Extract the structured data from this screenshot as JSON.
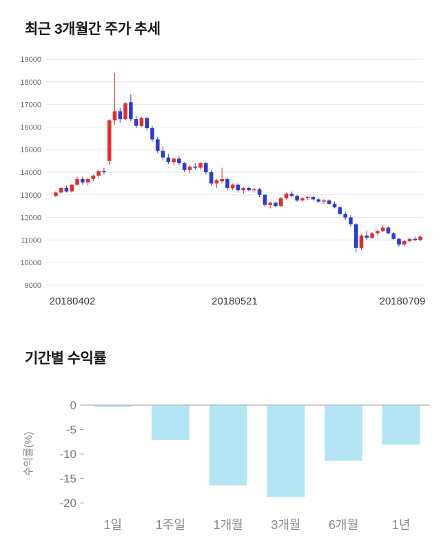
{
  "price_section": {
    "title": "최근 3개월간 주가 추세"
  },
  "returns_section": {
    "title": "기간별 수익률"
  },
  "colors": {
    "candle_up": "#e02f2f",
    "candle_down": "#2b3bd4",
    "gridline": "#e6e6e6",
    "axis_line": "#b0b0b0",
    "tick_label": "#666666",
    "x_label": "#3c3c3c",
    "bar_fill": "#b3e5f4",
    "bar_axis_text": "#777777",
    "category_text": "#888888"
  },
  "chart_data": [
    {
      "type": "candlestick",
      "title": "최근 3개월간 주가 추세",
      "ylim": [
        9000,
        19000
      ],
      "ytick_interval": 1000,
      "x_labels": [
        "20180402",
        "20180521",
        "20180709"
      ],
      "candles": [
        [
          12950,
          13150,
          12900,
          13100
        ],
        [
          13100,
          13350,
          13050,
          13300
        ],
        [
          13300,
          13400,
          13100,
          13150
        ],
        [
          13150,
          13500,
          13100,
          13450
        ],
        [
          13450,
          13800,
          13400,
          13700
        ],
        [
          13700,
          13800,
          13450,
          13550
        ],
        [
          13550,
          13750,
          13400,
          13700
        ],
        [
          13700,
          13900,
          13600,
          13850
        ],
        [
          13850,
          14100,
          13750,
          14050
        ],
        [
          14050,
          14200,
          13900,
          14000
        ],
        [
          14500,
          16350,
          14350,
          16300
        ],
        [
          16300,
          18400,
          16100,
          16700
        ],
        [
          16700,
          16850,
          16200,
          16350
        ],
        [
          16350,
          17100,
          16300,
          17050
        ],
        [
          17100,
          17450,
          16250,
          16350
        ],
        [
          16350,
          16500,
          15950,
          16050
        ],
        [
          16050,
          16450,
          16000,
          16400
        ],
        [
          16400,
          16450,
          15850,
          15950
        ],
        [
          15950,
          16050,
          15350,
          15450
        ],
        [
          15450,
          15550,
          14850,
          14950
        ],
        [
          14950,
          15150,
          14550,
          14650
        ],
        [
          14650,
          14800,
          14350,
          14450
        ],
        [
          14450,
          14650,
          14300,
          14600
        ],
        [
          14600,
          14700,
          14300,
          14400
        ],
        [
          14400,
          14450,
          14000,
          14100
        ],
        [
          14100,
          14300,
          13950,
          14250
        ],
        [
          14250,
          14400,
          14100,
          14200
        ],
        [
          14200,
          14450,
          14100,
          14400
        ],
        [
          14400,
          14450,
          13900,
          14000
        ],
        [
          14000,
          14100,
          13400,
          13500
        ],
        [
          13500,
          13700,
          13300,
          13650
        ],
        [
          13600,
          14200,
          13500,
          13700
        ],
        [
          13700,
          13750,
          13200,
          13300
        ],
        [
          13300,
          13500,
          13200,
          13450
        ],
        [
          13450,
          13500,
          13100,
          13200
        ],
        [
          13200,
          13350,
          13050,
          13300
        ],
        [
          13300,
          13350,
          13150,
          13200
        ],
        [
          13200,
          13300,
          13100,
          13250
        ],
        [
          13250,
          13300,
          12900,
          13000
        ],
        [
          13000,
          13050,
          12450,
          12550
        ],
        [
          12550,
          12700,
          12400,
          12650
        ],
        [
          12650,
          12700,
          12450,
          12500
        ],
        [
          12500,
          12900,
          12480,
          12850
        ],
        [
          12850,
          13100,
          12800,
          13050
        ],
        [
          13050,
          13150,
          12900,
          12950
        ],
        [
          12950,
          13000,
          12700,
          12750
        ],
        [
          12750,
          12900,
          12700,
          12850
        ],
        [
          12850,
          12950,
          12750,
          12900
        ],
        [
          12900,
          12950,
          12750,
          12800
        ],
        [
          12800,
          12850,
          12650,
          12700
        ],
        [
          12700,
          12800,
          12600,
          12750
        ],
        [
          12750,
          12800,
          12550,
          12600
        ],
        [
          12600,
          12700,
          12400,
          12450
        ],
        [
          12450,
          12500,
          12100,
          12150
        ],
        [
          12150,
          12250,
          11900,
          12000
        ],
        [
          12000,
          12100,
          11600,
          11700
        ],
        [
          11700,
          11750,
          10450,
          10650
        ],
        [
          10650,
          11250,
          10550,
          11200
        ],
        [
          11200,
          11400,
          11000,
          11100
        ],
        [
          11100,
          11350,
          11050,
          11300
        ],
        [
          11300,
          11450,
          11200,
          11400
        ],
        [
          11400,
          11650,
          11350,
          11550
        ],
        [
          11550,
          11600,
          11250,
          11300
        ],
        [
          11300,
          11350,
          11000,
          11050
        ],
        [
          11050,
          11100,
          10700,
          10800
        ],
        [
          10800,
          11000,
          10750,
          10950
        ],
        [
          10950,
          11100,
          10900,
          11050
        ],
        [
          11050,
          11150,
          10950,
          11000
        ],
        [
          11000,
          11200,
          10950,
          11150
        ]
      ]
    },
    {
      "type": "bar",
      "title": "기간별 수익률",
      "ylabel": "수익률(%)",
      "categories": [
        "1일",
        "1주일",
        "1개월",
        "3개월",
        "6개월",
        "1년"
      ],
      "values": [
        -0.3,
        -7.1,
        -16.3,
        -18.7,
        -11.3,
        -8.0
      ],
      "ylim": [
        -20,
        0
      ],
      "yticks": [
        0,
        -5,
        -10,
        -15,
        -20
      ],
      "legend": "none",
      "grid": "off"
    }
  ]
}
